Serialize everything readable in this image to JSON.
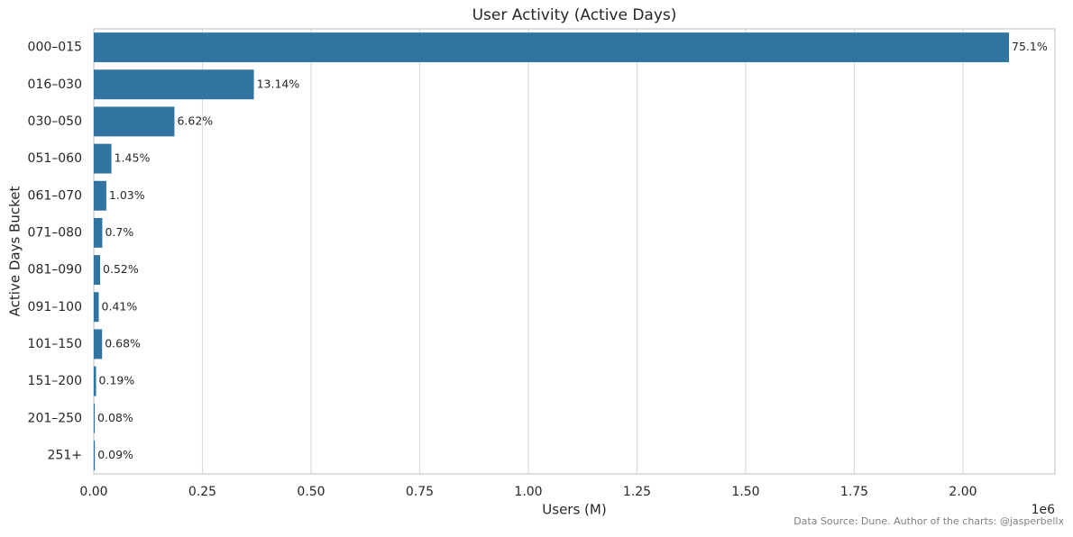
{
  "chart_data": {
    "type": "barh",
    "title": "User Activity (Active Days)",
    "x_label": "Users (M)",
    "y_label": "Active Days Bucket",
    "x_offset_label": "1e6",
    "footnote": "Data Source: Dune. Author of the charts: @jasperbellx",
    "categories": [
      "000–015",
      "016–030",
      "030–050",
      "051–060",
      "061–070",
      "071–080",
      "081–090",
      "091–100",
      "101–150",
      "151–200",
      "201–250",
      "251+"
    ],
    "values": [
      2105800,
      368400,
      185600,
      40700,
      28900,
      19600,
      14600,
      11500,
      19100,
      5300,
      2200,
      2500
    ],
    "value_labels": [
      "75.1%",
      "13.14%",
      "6.62%",
      "1.45%",
      "1.03%",
      "0.7%",
      "0.52%",
      "0.41%",
      "0.68%",
      "0.19%",
      "0.08%",
      "0.09%"
    ],
    "color": "#3274a1",
    "xlim": [
      0,
      2211600
    ],
    "xticks": [
      {
        "value": 0,
        "label": "0.00"
      },
      {
        "value": 250000,
        "label": "0.25"
      },
      {
        "value": 500000,
        "label": "0.50"
      },
      {
        "value": 750000,
        "label": "0.75"
      },
      {
        "value": 1000000,
        "label": "1.00"
      },
      {
        "value": 1250000,
        "label": "1.25"
      },
      {
        "value": 1500000,
        "label": "1.50"
      },
      {
        "value": 1750000,
        "label": "1.75"
      },
      {
        "value": 2000000,
        "label": "2.00"
      }
    ],
    "grid": true
  }
}
